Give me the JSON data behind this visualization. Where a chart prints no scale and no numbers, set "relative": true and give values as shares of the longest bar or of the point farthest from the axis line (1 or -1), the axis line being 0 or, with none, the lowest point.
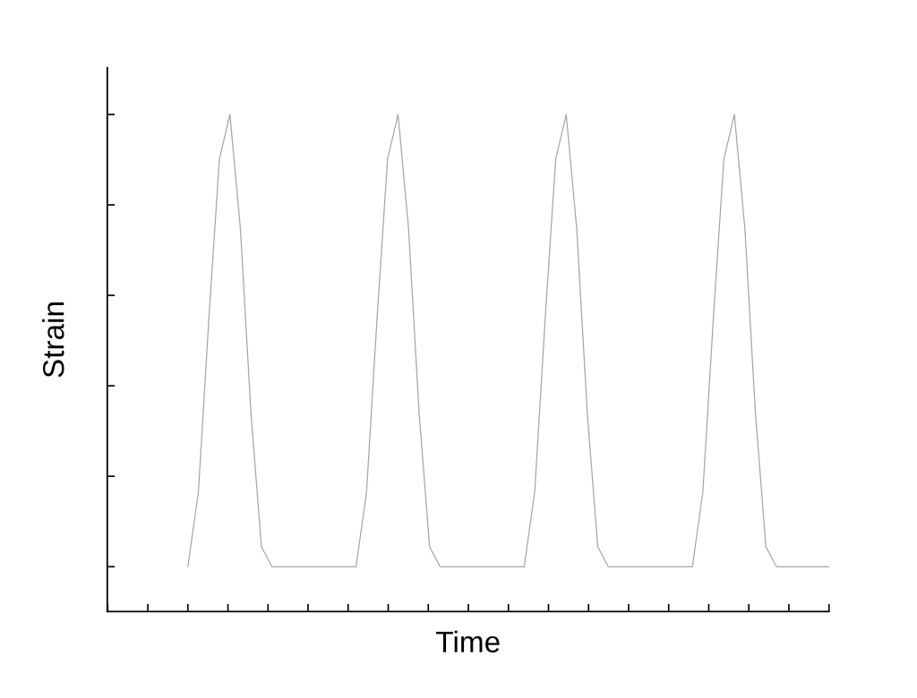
{
  "chart_data": {
    "type": "line",
    "relative": true,
    "xlabel": "Time",
    "ylabel": "Strain",
    "marker": "none",
    "line_style": "solid",
    "tick_labels": false,
    "categories": [
      null,
      null,
      null,
      null,
      null,
      null,
      null,
      null,
      null,
      null,
      null,
      null,
      null,
      null,
      null,
      null,
      null,
      null,
      null,
      null,
      null,
      null,
      null,
      null,
      null,
      null,
      null,
      null,
      null,
      null,
      null,
      null,
      null,
      null,
      null,
      null,
      null,
      null,
      null,
      null,
      null,
      null,
      null,
      null,
      null,
      null,
      null,
      null,
      null,
      null,
      null,
      null,
      null,
      null,
      null,
      null,
      null,
      null,
      null,
      null,
      null,
      null
    ],
    "series": [
      {
        "color": "#a6a6a6",
        "values": [
          0.09,
          0.24,
          0.59,
          0.91,
          1,
          0.77,
          0.4,
          0.13,
          0.09,
          0.09,
          0.09,
          0.09,
          0.09,
          0.09,
          0.09,
          0.09,
          0.09,
          0.24,
          0.59,
          0.91,
          1,
          0.77,
          0.4,
          0.13,
          0.09,
          0.09,
          0.09,
          0.09,
          0.09,
          0.09,
          0.09,
          0.09,
          0.09,
          0.24,
          0.59,
          0.91,
          1,
          0.77,
          0.4,
          0.13,
          0.09,
          0.09,
          0.09,
          0.09,
          0.09,
          0.09,
          0.09,
          0.09,
          0.09,
          0.24,
          0.59,
          0.91,
          1,
          0.77,
          0.4,
          0.13,
          0.09,
          0.09,
          0.09,
          0.09,
          0.09,
          0.09
        ]
      }
    ]
  }
}
